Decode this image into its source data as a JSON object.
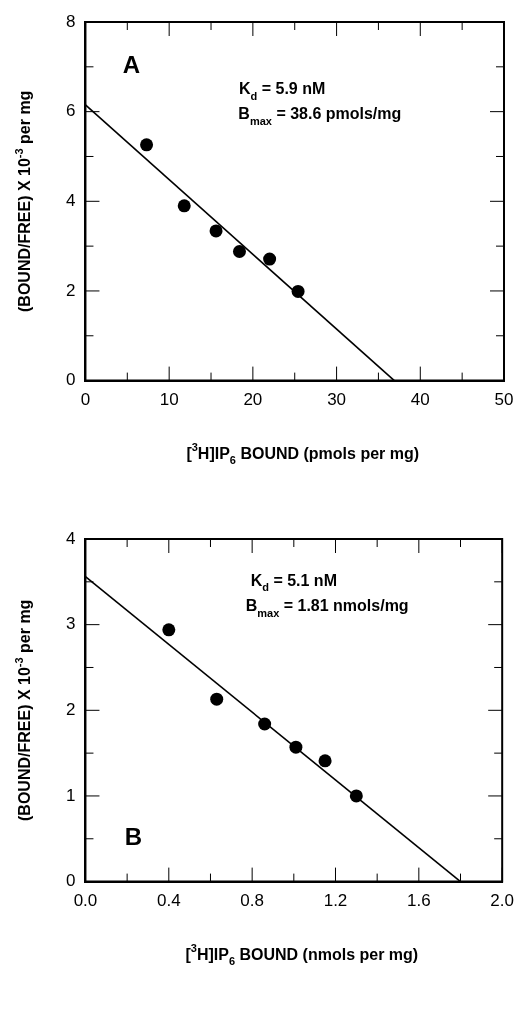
{
  "chart_data": [
    {
      "type": "scatter",
      "xlabel": "[$^{3}$H]IP$_{6}$ BOUND (pmols per mg)",
      "ylabel": "(BOUND/FREE) X 10$^{-3}$ per mg",
      "annotations": [
        "A",
        "K$_{d}$ = 5.9 nM",
        "B$_{max}$ = 38.6 pmols/mg"
      ],
      "xlim": [
        0,
        50
      ],
      "ylim": [
        0,
        8
      ],
      "xticks": [
        0,
        {
          "value": 5,
          "label": null
        },
        10,
        {
          "value": 15,
          "label": null
        },
        20,
        {
          "value": 25,
          "label": null
        },
        30,
        {
          "value": 35,
          "label": null
        },
        40,
        {
          "value": 45,
          "label": null
        },
        50
      ],
      "yticks": [
        0,
        {
          "value": 1,
          "label": null
        },
        2,
        {
          "value": 3,
          "label": null
        },
        4,
        {
          "value": 5,
          "label": null
        },
        6,
        {
          "value": 7,
          "label": null
        },
        8
      ],
      "series": [
        {
          "color": "#000000",
          "marker": "circle",
          "x": [
            7.3,
            11.8,
            15.6,
            18.4,
            22.0,
            25.4
          ],
          "values": [
            5.26,
            3.9,
            3.34,
            2.88,
            2.71,
            1.99
          ]
        },
        {
          "type": "line",
          "marker": "none",
          "color": "#000000",
          "x": [
            0,
            36.9
          ],
          "values": [
            6.15,
            0
          ]
        }
      ]
    },
    {
      "type": "scatter",
      "xlabel": "[$^{3}$H]IP$_{6}$ BOUND (nmols per mg)",
      "ylabel": "(BOUND/FREE) X 10$^{-3}$ per mg",
      "annotations": [
        "B",
        "K$_{d}$ = 5.1 nM",
        "B$_{max}$ = 1.81 nmols/mg"
      ],
      "xlim": [
        0,
        2
      ],
      "ylim": [
        0,
        4
      ],
      "xticks": [
        {
          "value": 0,
          "label": "0.0"
        },
        {
          "value": 0.2,
          "label": null
        },
        {
          "value": 0.4,
          "label": "0.4"
        },
        {
          "value": 0.6,
          "label": null
        },
        {
          "value": 0.8,
          "label": "0.8"
        },
        {
          "value": 1,
          "label": null
        },
        {
          "value": 1.2,
          "label": "1.2"
        },
        {
          "value": 1.4,
          "label": null
        },
        {
          "value": 1.6,
          "label": "1.6"
        },
        {
          "value": 1.8,
          "label": null
        },
        {
          "value": 2,
          "label": "2.0"
        }
      ],
      "yticks": [
        0,
        {
          "value": 0.5,
          "label": null
        },
        1,
        {
          "value": 1.5,
          "label": null
        },
        2,
        {
          "value": 2.5,
          "label": null
        },
        3,
        {
          "value": 3.5,
          "label": null
        },
        4
      ],
      "series": [
        {
          "color": "#000000",
          "marker": "circle",
          "x": [
            0.4,
            0.63,
            0.86,
            1.01,
            1.15,
            1.3
          ],
          "values": [
            2.94,
            2.13,
            1.84,
            1.57,
            1.41,
            1.0
          ]
        },
        {
          "type": "line",
          "marker": "none",
          "color": "#000000",
          "x": [
            0,
            1.8
          ],
          "values": [
            3.56,
            0
          ]
        }
      ]
    }
  ]
}
